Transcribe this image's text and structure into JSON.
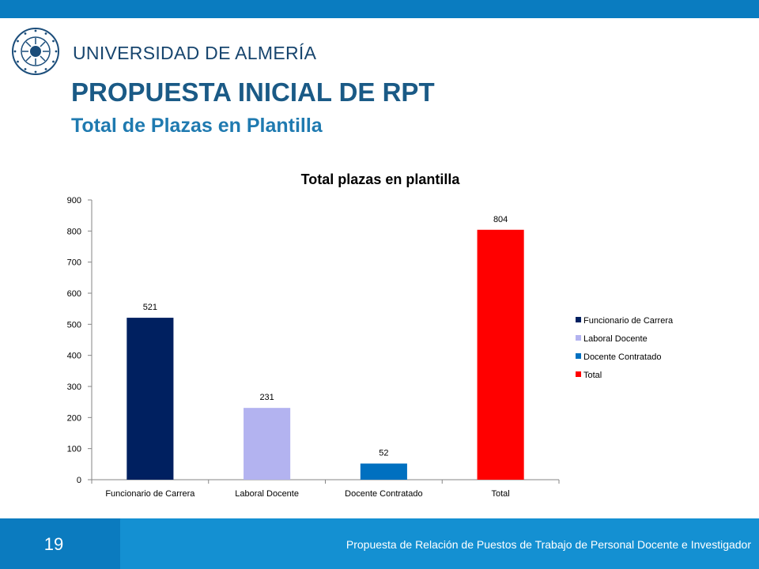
{
  "header": {
    "university": "UNIVERSIDAD DE ALMERÍA",
    "seal_text": "IN LUMINE SAPIENTIA · UNIVERSIDAD DE ALMERIA",
    "title": "PROPUESTA INICIAL DE RPT",
    "subtitle": "Total de Plazas en Plantilla"
  },
  "footer": {
    "page_number": "19",
    "text": "Propuesta de Relación de Puestos de Trabajo de Personal Docente e Investigador"
  },
  "colors": {
    "top_bar": "#0a7cc0",
    "title": "#1a5a86",
    "subtitle": "#1f7ab0",
    "footer_dark": "#0b7bbf",
    "footer_light": "#1490d2"
  },
  "chart_data": {
    "type": "bar",
    "title": "Total plazas en plantilla",
    "categories": [
      "Funcionario de Carrera",
      "Laboral Docente",
      "Docente Contratado",
      "Total"
    ],
    "values": [
      521,
      231,
      52,
      804
    ],
    "colors": [
      "#002060",
      "#b3b3f0",
      "#0070c0",
      "#ff0000"
    ],
    "ylim": [
      0,
      900
    ],
    "yticks": [
      0,
      100,
      200,
      300,
      400,
      500,
      600,
      700,
      800,
      900
    ],
    "grid": false,
    "legend": [
      "Funcionario de Carrera",
      "Laboral Docente",
      "Docente Contratado",
      "Total"
    ],
    "legend_position": "right",
    "xlabel": "",
    "ylabel": ""
  }
}
